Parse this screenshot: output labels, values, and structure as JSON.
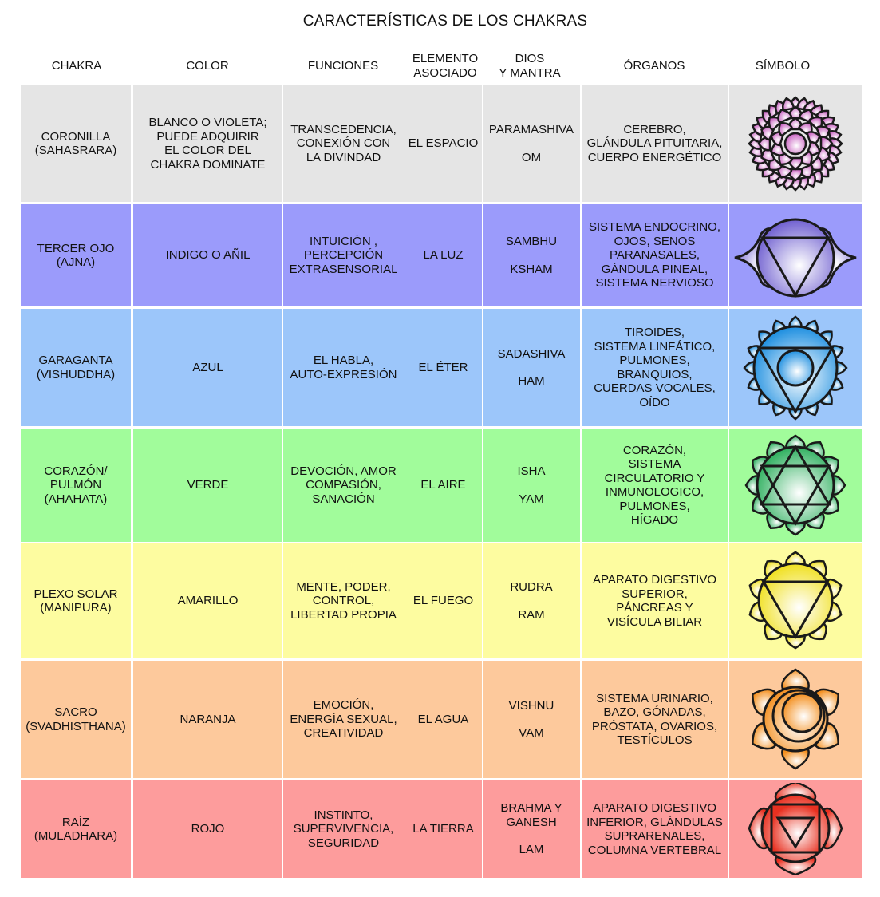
{
  "title": "CARACTERÍSTICAS DE LOS CHAKRAS",
  "headers": {
    "chakra": "CHAKRA",
    "color": "COLOR",
    "funciones": "FUNCIONES",
    "elemento": "ELEMENTO\nASOCIADO",
    "dios": "DIOS\nY MANTRA",
    "organos": "ÓRGANOS",
    "simbolo": "SÍMBOLO"
  },
  "rows": [
    {
      "chakra": "CORONILLA\n(SAHASRARA)",
      "color": "BLANCO O VIOLETA;\nPUEDE ADQUIRIR\nEL COLOR DEL\nCHAKRA DOMINATE",
      "funciones": "TRANSCEDENCIA,\nCONEXIÓN CON\nLA DIVINDAD",
      "elemento": "EL ESPACIO",
      "dios": "PARAMASHIVA",
      "mantra": "OM",
      "organos": "CEREBRO,\nGLÁNDULA PITUITARIA,\nCUERPO ENERGÉTICO",
      "symbol": "crown-chakra-lotus",
      "bg": "#e5e5e5",
      "symbol_color": "#c860c0"
    },
    {
      "chakra": "TERCER OJO\n(AJNA)",
      "color": "INDIGO O AÑIL",
      "funciones": "INTUICIÓN ,\nPERCEPCIÓN\nEXTRASENSORIAL",
      "elemento": "LA LUZ",
      "dios": "SAMBHU",
      "mantra": "KSHAM",
      "organos": "SISTEMA ENDOCRINO,\nOJOS, SENOS\nPARANASALES,\nGÁNDULA PINEAL,\nSISTEMA NERVIOSO",
      "symbol": "third-eye-chakra",
      "bg": "#9b9bfb",
      "symbol_color": "#7060d0"
    },
    {
      "chakra": "GARAGANTA\n(VISHUDDHA)",
      "color": "AZUL",
      "funciones": "EL HABLA,\nAUTO-EXPRESIÓN",
      "elemento": "EL ÉTER",
      "dios": "SADASHIVA",
      "mantra": "HAM",
      "organos": "TIROIDES,\nSISTEMA LINFÁTICO,\nPULMONES,\nBRANQUIOS,\nCUERDAS VOCALES,\nOÍDO",
      "symbol": "throat-chakra",
      "bg": "#9cc6fa",
      "symbol_color": "#1e8fe0"
    },
    {
      "chakra": "CORAZÓN/\nPULMÓN\n(AHAHATA)",
      "color": "VERDE",
      "funciones": "DEVOCIÓN, AMOR\nCOMPASIÓN,\nSANACIÓN",
      "elemento": "EL AIRE",
      "dios": "ISHA",
      "mantra": "YAM",
      "organos": "CORAZÓN,\nSISTEMA\nCIRCULATORIO Y\nINMUNOLOGICO,\nPULMONES,\nHÍGADO",
      "symbol": "heart-chakra",
      "bg": "#a1fc9b",
      "symbol_color": "#30b060"
    },
    {
      "chakra": "PLEXO SOLAR\n(MANIPURA)",
      "color": "AMARILLO",
      "funciones": "MENTE, PODER,\nCONTROL,\nLIBERTAD PROPIA",
      "elemento": "EL FUEGO",
      "dios": "RUDRA",
      "mantra": "RAM",
      "organos": "APARATO DIGESTIVO\nSUPERIOR,\nPÁNCREAS Y\nVISÍCULA BILIAR",
      "symbol": "solar-plexus-chakra",
      "bg": "#fdfca0",
      "symbol_color": "#f0e020"
    },
    {
      "chakra": "SACRO\n(SVADHISTHANA)",
      "color": "NARANJA",
      "funciones": "EMOCIÓN,\nENERGÍA SEXUAL,\nCREATIVIDAD",
      "elemento": "EL AGUA",
      "dios": "VISHNU",
      "mantra": "VAM",
      "organos": "SISTEMA URINARIO,\nBAZO, GÓNADAS,\nPRÓSTATA, OVARIOS,\nTESTÍCULOS",
      "symbol": "sacral-chakra",
      "bg": "#fdc99c",
      "symbol_color": "#f49020"
    },
    {
      "chakra": "RAÍZ\n(MULADHARA)",
      "color": "ROJO",
      "funciones": "INSTINTO,\nSUPERVIVENCIA,\nSEGURIDAD",
      "elemento": "LA TIERRA",
      "dios": "BRAHMA Y\nGANESH",
      "mantra": "LAM",
      "organos": "APARATO DIGESTIVO\nINFERIOR, GLÁNDULAS\nSUPRARENALES,\nCOLUMNA VERTEBRAL",
      "symbol": "root-chakra",
      "bg": "#fd9c9c",
      "symbol_color": "#e83020"
    }
  ]
}
